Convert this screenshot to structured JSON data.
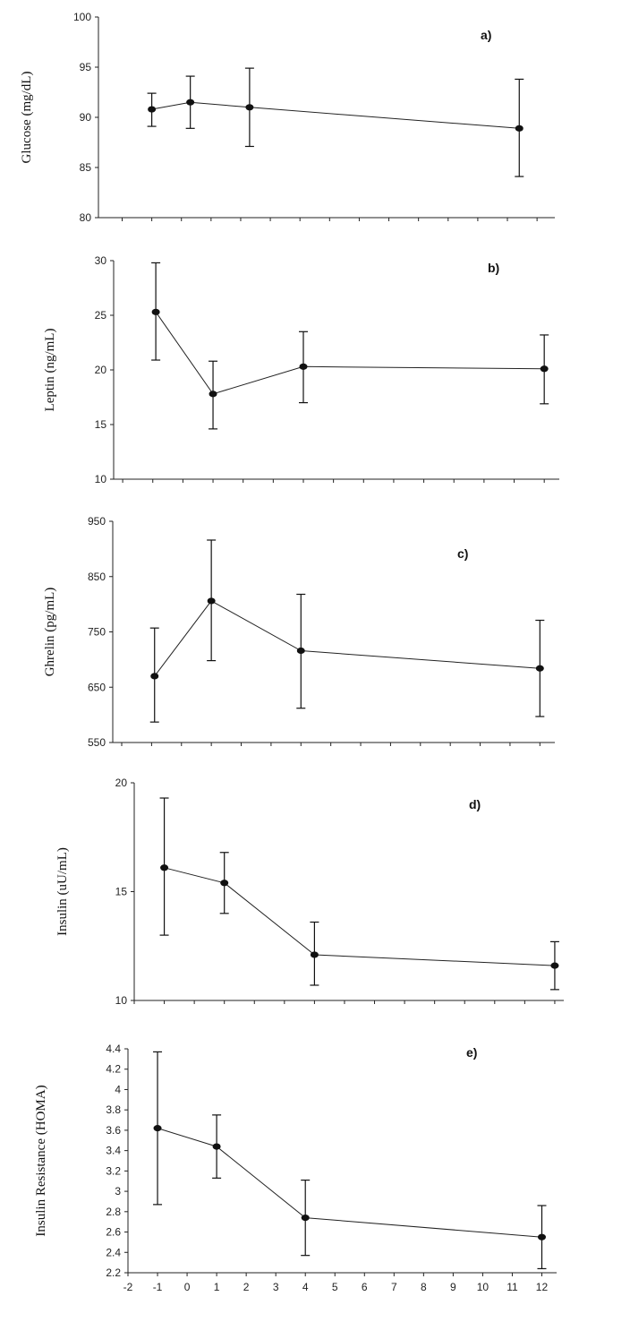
{
  "chart_data": [
    {
      "type": "line",
      "panel_label": "a)",
      "ylabel": "Glucose (mg/dL)",
      "ylim": [
        80,
        100
      ],
      "yticks": [
        "80",
        "85",
        "90",
        "95",
        "100"
      ],
      "x": [
        -1,
        0.3,
        2.3,
        11.4
      ],
      "values": [
        90.8,
        91.5,
        91.0,
        88.9
      ],
      "err_upper": [
        92.4,
        94.1,
        94.9,
        93.8
      ],
      "err_lower": [
        89.1,
        88.9,
        87.1,
        84.1
      ],
      "xticks_shown": false
    },
    {
      "type": "line",
      "panel_label": "b)",
      "ylabel": "Leptin (ng/mL)",
      "ylim": [
        10,
        30
      ],
      "yticks": [
        "10",
        "15",
        "20",
        "25",
        "30"
      ],
      "x": [
        -0.9,
        1.0,
        4.0,
        12.0
      ],
      "values": [
        25.3,
        17.8,
        20.3,
        20.1
      ],
      "err_upper": [
        29.8,
        20.8,
        23.5,
        23.2
      ],
      "err_lower": [
        20.9,
        14.6,
        17.0,
        16.9
      ],
      "xticks_shown": false
    },
    {
      "type": "line",
      "panel_label": "c)",
      "ylabel": "Ghrelin (pg/mL)",
      "ylim": [
        550,
        950
      ],
      "yticks": [
        "550",
        "650",
        "750",
        "850",
        "950"
      ],
      "x": [
        -0.9,
        1.0,
        4.0,
        12.0
      ],
      "values": [
        670,
        806,
        716,
        684
      ],
      "err_upper": [
        757,
        916,
        818,
        771
      ],
      "err_lower": [
        587,
        698,
        612,
        597
      ],
      "xticks_shown": false
    },
    {
      "type": "line",
      "panel_label": "d)",
      "ylabel": "Insulin (uU/mL)",
      "ylim": [
        10,
        20
      ],
      "yticks": [
        "10",
        "15",
        "20"
      ],
      "x": [
        -1,
        1,
        4,
        12
      ],
      "values": [
        16.1,
        15.4,
        12.1,
        11.6
      ],
      "err_upper": [
        19.3,
        16.8,
        13.6,
        12.7
      ],
      "err_lower": [
        13.0,
        14.0,
        10.7,
        10.5
      ],
      "xticks_shown": false
    },
    {
      "type": "line",
      "panel_label": "e)",
      "ylabel": "Insulin Resistance (HOMA)",
      "ylim": [
        2.2,
        4.4
      ],
      "yticks": [
        "2.2",
        "2.4",
        "2.6",
        "2.8",
        "3",
        "3.2",
        "3.4",
        "3.6",
        "3.8",
        "4",
        "4.2",
        "4.4"
      ],
      "x": [
        -1,
        1,
        4,
        12
      ],
      "values": [
        3.62,
        3.44,
        2.74,
        2.55
      ],
      "err_upper": [
        4.37,
        3.75,
        3.11,
        2.86
      ],
      "err_lower": [
        2.87,
        3.13,
        2.37,
        2.24
      ],
      "xticks": [
        "-2",
        "-1",
        "0",
        "1",
        "2",
        "3",
        "4",
        "5",
        "6",
        "7",
        "8",
        "9",
        "10",
        "11",
        "12"
      ],
      "xticks_shown": true
    }
  ]
}
